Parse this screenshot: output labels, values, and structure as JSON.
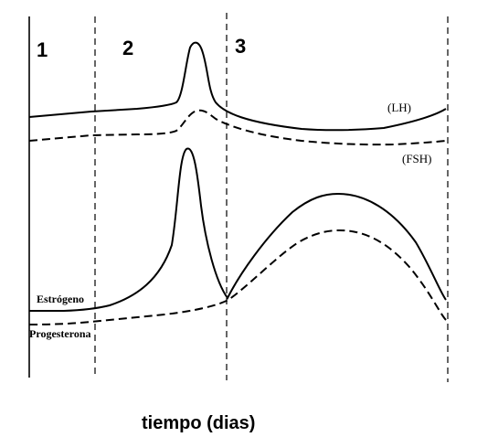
{
  "phases": [
    "1",
    "2",
    "3"
  ],
  "hormones": {
    "lh": "(LH)",
    "fsh": "(FSH)",
    "estrogen": "Estrógeno",
    "progesterone": "Progesterona"
  },
  "x_axis_title": "tiempo (dias)"
}
